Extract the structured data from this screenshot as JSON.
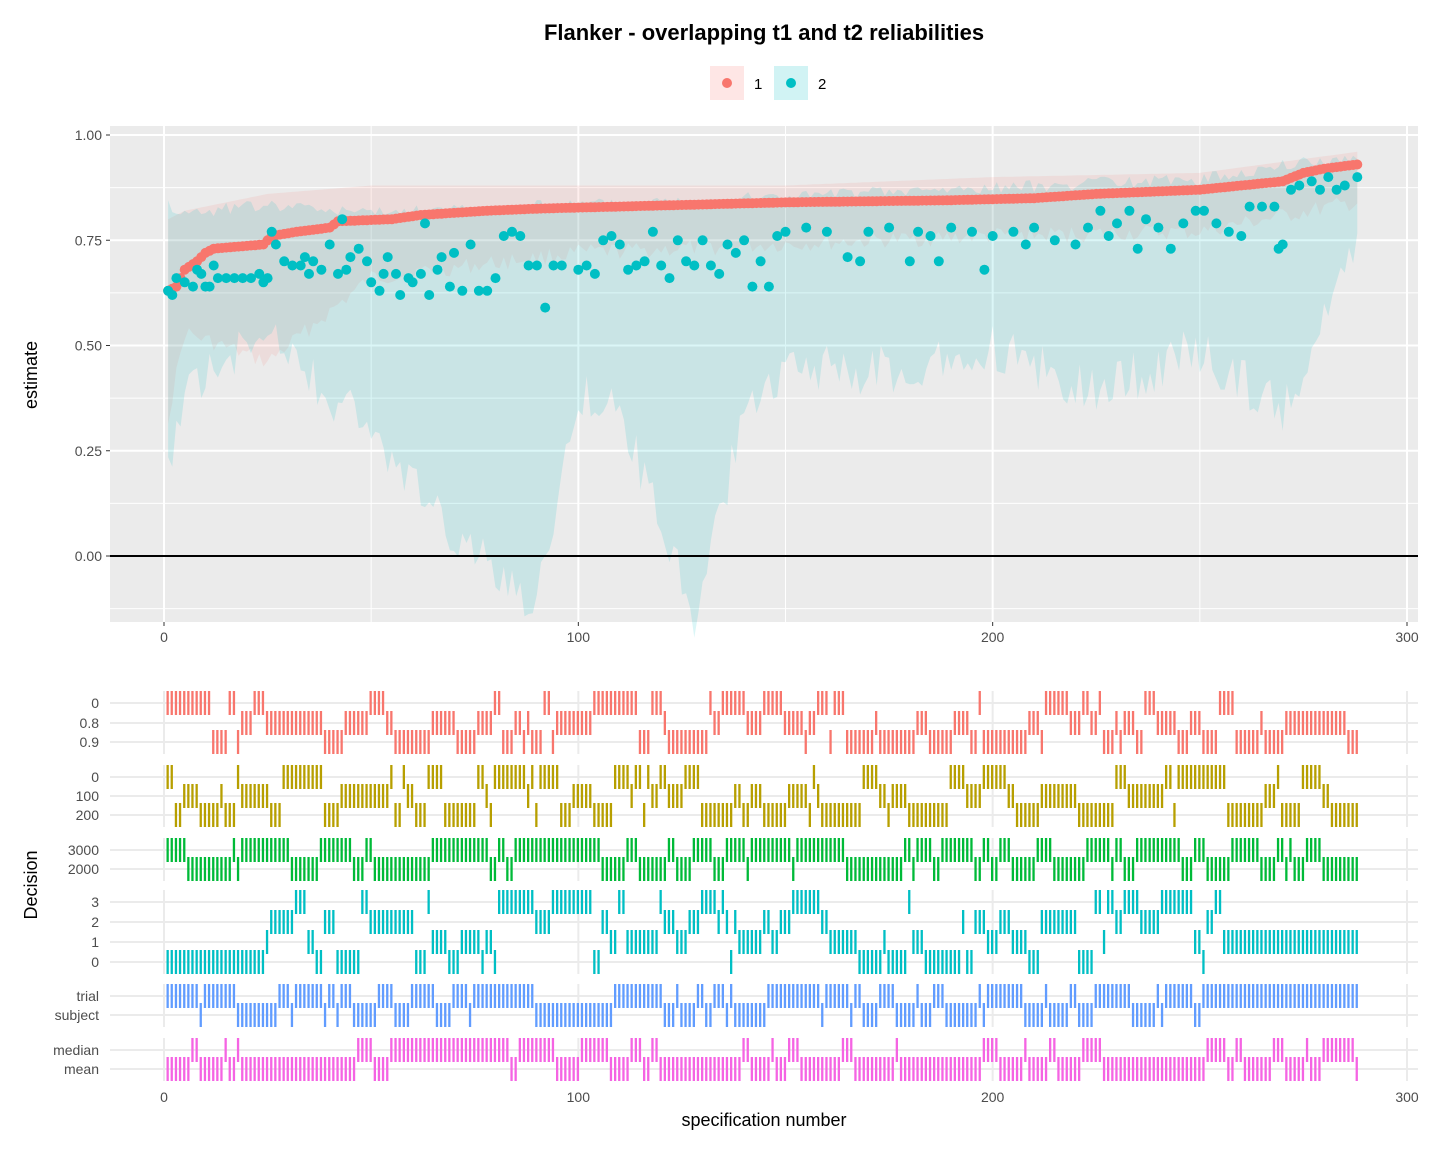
{
  "chart_data": [
    {
      "type": "scatter",
      "title": "Flanker - overlapping t1 and t2 reliabilities",
      "xlabel": "",
      "ylabel": "estimate",
      "xlim": [
        0,
        300
      ],
      "ylim": [
        -0.13,
        1.0
      ],
      "x_ticks": [
        "0",
        "100",
        "200",
        "300"
      ],
      "y_ticks": [
        "0.00",
        "0.25",
        "0.50",
        "0.75",
        "1.00"
      ],
      "hline": 0,
      "grid": true,
      "legend_position": "top",
      "legend": [
        "1",
        "2"
      ],
      "colors": {
        "1": "#F8766D",
        "2": "#00BFC4"
      },
      "n_specifications": 288,
      "series": [
        {
          "name": "1",
          "description": "sorted t1 estimates with ribbon",
          "points": [
            [
              1,
              0.63
            ],
            [
              3,
              0.64
            ],
            [
              5,
              0.68
            ],
            [
              8,
              0.7
            ],
            [
              10,
              0.72
            ],
            [
              12,
              0.73
            ],
            [
              24,
              0.74
            ],
            [
              26,
              0.76
            ],
            [
              32,
              0.77
            ],
            [
              40,
              0.78
            ],
            [
              42,
              0.795
            ],
            [
              55,
              0.8
            ],
            [
              62,
              0.81
            ],
            [
              70,
              0.815
            ],
            [
              78,
              0.82
            ],
            [
              90,
              0.825
            ],
            [
              110,
              0.83
            ],
            [
              130,
              0.835
            ],
            [
              150,
              0.84
            ],
            [
              190,
              0.845
            ],
            [
              210,
              0.85
            ],
            [
              225,
              0.86
            ],
            [
              250,
              0.87
            ],
            [
              260,
              0.88
            ],
            [
              270,
              0.89
            ],
            [
              275,
              0.91
            ],
            [
              280,
              0.92
            ],
            [
              288,
              0.93
            ]
          ],
          "band_lower": [
            [
              1,
              0.35
            ],
            [
              5,
              0.55
            ],
            [
              25,
              0.48
            ],
            [
              50,
              0.68
            ],
            [
              100,
              0.74
            ],
            [
              150,
              0.76
            ],
            [
              200,
              0.78
            ],
            [
              250,
              0.79
            ],
            [
              288,
              0.86
            ]
          ],
          "band_upper": [
            [
              1,
              0.8
            ],
            [
              5,
              0.82
            ],
            [
              25,
              0.86
            ],
            [
              50,
              0.88
            ],
            [
              100,
              0.88
            ],
            [
              150,
              0.88
            ],
            [
              200,
              0.9
            ],
            [
              250,
              0.91
            ],
            [
              288,
              0.96
            ]
          ]
        },
        {
          "name": "2",
          "description": "t2 estimates with ribbon",
          "points": [
            [
              1,
              0.63
            ],
            [
              2,
              0.62
            ],
            [
              3,
              0.66
            ],
            [
              5,
              0.65
            ],
            [
              7,
              0.64
            ],
            [
              8,
              0.68
            ],
            [
              9,
              0.67
            ],
            [
              10,
              0.64
            ],
            [
              11,
              0.64
            ],
            [
              12,
              0.69
            ],
            [
              13,
              0.66
            ],
            [
              15,
              0.66
            ],
            [
              17,
              0.66
            ],
            [
              19,
              0.66
            ],
            [
              21,
              0.66
            ],
            [
              23,
              0.67
            ],
            [
              24,
              0.65
            ],
            [
              25,
              0.66
            ],
            [
              26,
              0.77
            ],
            [
              27,
              0.74
            ],
            [
              29,
              0.7
            ],
            [
              31,
              0.69
            ],
            [
              33,
              0.69
            ],
            [
              34,
              0.71
            ],
            [
              35,
              0.67
            ],
            [
              36,
              0.7
            ],
            [
              38,
              0.68
            ],
            [
              40,
              0.74
            ],
            [
              42,
              0.67
            ],
            [
              43,
              0.8
            ],
            [
              44,
              0.68
            ],
            [
              45,
              0.71
            ],
            [
              47,
              0.73
            ],
            [
              49,
              0.7
            ],
            [
              50,
              0.65
            ],
            [
              52,
              0.63
            ],
            [
              53,
              0.67
            ],
            [
              54,
              0.71
            ],
            [
              56,
              0.67
            ],
            [
              57,
              0.62
            ],
            [
              59,
              0.66
            ],
            [
              60,
              0.65
            ],
            [
              62,
              0.67
            ],
            [
              63,
              0.79
            ],
            [
              64,
              0.62
            ],
            [
              66,
              0.68
            ],
            [
              67,
              0.71
            ],
            [
              69,
              0.64
            ],
            [
              70,
              0.72
            ],
            [
              72,
              0.63
            ],
            [
              74,
              0.74
            ],
            [
              76,
              0.63
            ],
            [
              78,
              0.63
            ],
            [
              80,
              0.66
            ],
            [
              82,
              0.76
            ],
            [
              84,
              0.77
            ],
            [
              86,
              0.76
            ],
            [
              88,
              0.69
            ],
            [
              90,
              0.69
            ],
            [
              92,
              0.59
            ],
            [
              94,
              0.69
            ],
            [
              96,
              0.69
            ],
            [
              100,
              0.68
            ],
            [
              102,
              0.69
            ],
            [
              104,
              0.67
            ],
            [
              106,
              0.75
            ],
            [
              108,
              0.76
            ],
            [
              110,
              0.74
            ],
            [
              112,
              0.68
            ],
            [
              114,
              0.69
            ],
            [
              116,
              0.7
            ],
            [
              118,
              0.77
            ],
            [
              120,
              0.69
            ],
            [
              122,
              0.66
            ],
            [
              124,
              0.75
            ],
            [
              126,
              0.7
            ],
            [
              128,
              0.69
            ],
            [
              130,
              0.75
            ],
            [
              132,
              0.69
            ],
            [
              134,
              0.67
            ],
            [
              136,
              0.74
            ],
            [
              138,
              0.72
            ],
            [
              140,
              0.75
            ],
            [
              142,
              0.64
            ],
            [
              144,
              0.7
            ],
            [
              146,
              0.64
            ],
            [
              148,
              0.76
            ],
            [
              150,
              0.77
            ],
            [
              155,
              0.78
            ],
            [
              160,
              0.77
            ],
            [
              165,
              0.71
            ],
            [
              168,
              0.7
            ],
            [
              170,
              0.77
            ],
            [
              175,
              0.78
            ],
            [
              180,
              0.7
            ],
            [
              182,
              0.77
            ],
            [
              185,
              0.76
            ],
            [
              187,
              0.7
            ],
            [
              190,
              0.78
            ],
            [
              195,
              0.77
            ],
            [
              198,
              0.68
            ],
            [
              200,
              0.76
            ],
            [
              205,
              0.77
            ],
            [
              208,
              0.74
            ],
            [
              210,
              0.78
            ],
            [
              215,
              0.75
            ],
            [
              220,
              0.74
            ],
            [
              223,
              0.78
            ],
            [
              226,
              0.82
            ],
            [
              228,
              0.76
            ],
            [
              230,
              0.79
            ],
            [
              233,
              0.82
            ],
            [
              235,
              0.73
            ],
            [
              237,
              0.8
            ],
            [
              240,
              0.78
            ],
            [
              243,
              0.73
            ],
            [
              246,
              0.79
            ],
            [
              249,
              0.82
            ],
            [
              251,
              0.82
            ],
            [
              254,
              0.79
            ],
            [
              257,
              0.77
            ],
            [
              260,
              0.76
            ],
            [
              262,
              0.83
            ],
            [
              265,
              0.83
            ],
            [
              268,
              0.83
            ],
            [
              269,
              0.73
            ],
            [
              270,
              0.74
            ],
            [
              272,
              0.87
            ],
            [
              274,
              0.88
            ],
            [
              277,
              0.89
            ],
            [
              279,
              0.87
            ],
            [
              281,
              0.9
            ],
            [
              283,
              0.87
            ],
            [
              285,
              0.88
            ],
            [
              288,
              0.9
            ]
          ],
          "band_lower": [
            [
              1,
              0.25
            ],
            [
              5,
              0.45
            ],
            [
              25,
              0.58
            ],
            [
              50,
              0.35
            ],
            [
              70,
              0.1
            ],
            [
              90,
              -0.05
            ],
            [
              100,
              0.45
            ],
            [
              110,
              0.4
            ],
            [
              128,
              -0.08
            ],
            [
              140,
              0.4
            ],
            [
              150,
              0.5
            ],
            [
              180,
              0.5
            ],
            [
              200,
              0.55
            ],
            [
              225,
              0.45
            ],
            [
              250,
              0.55
            ],
            [
              270,
              0.4
            ],
            [
              288,
              0.8
            ]
          ],
          "band_upper": [
            [
              1,
              0.82
            ],
            [
              5,
              0.8
            ],
            [
              25,
              0.82
            ],
            [
              50,
              0.8
            ],
            [
              100,
              0.82
            ],
            [
              150,
              0.84
            ],
            [
              200,
              0.86
            ],
            [
              250,
              0.88
            ],
            [
              275,
              0.92
            ],
            [
              288,
              0.93
            ]
          ]
        }
      ]
    },
    {
      "type": "bar",
      "title": "",
      "xlabel": "specification number",
      "ylabel": "Decision",
      "xlim": [
        0,
        300
      ],
      "x_ticks": [
        "0",
        "100",
        "200",
        "300"
      ],
      "panels": [
        {
          "levels": [
            "0",
            "0.8",
            "0.9"
          ],
          "color": "#F8766D"
        },
        {
          "levels": [
            "0",
            "100",
            "200"
          ],
          "color": "#B79F00"
        },
        {
          "levels": [
            "2000",
            "3000"
          ],
          "color": "#00BA38"
        },
        {
          "levels": [
            "0",
            "1",
            "2",
            "3"
          ],
          "color": "#00BFC4"
        },
        {
          "levels": [
            "subject",
            "trial"
          ],
          "color": "#619CFF"
        },
        {
          "levels": [
            "mean",
            "median"
          ],
          "color": "#F564E3"
        }
      ]
    }
  ]
}
